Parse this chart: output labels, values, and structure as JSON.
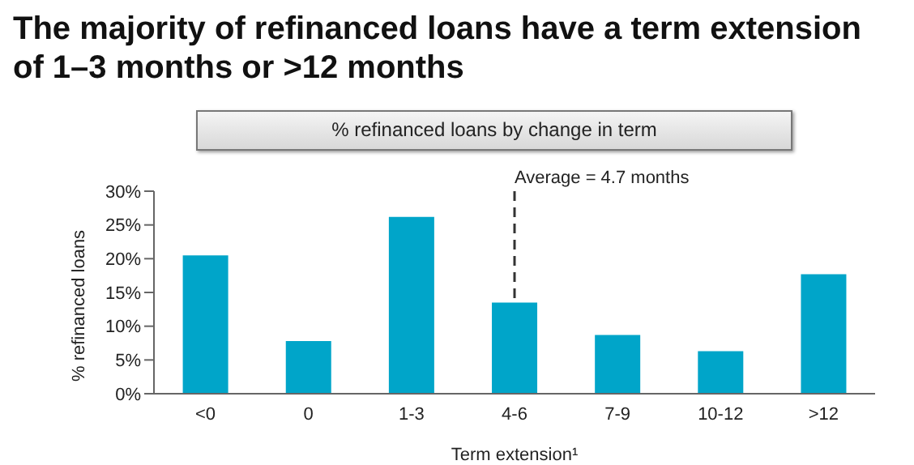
{
  "chart_data": {
    "type": "bar",
    "title": "The majority of refinanced loans have a term extension of 1–3 months or >12 months",
    "subtitle": "% refinanced loans by change in term",
    "xlabel": "Term extension¹",
    "ylabel": "% refinanced loans",
    "categories": [
      "<0",
      "0",
      "1-3",
      "4-6",
      "7-9",
      "10-12",
      ">12"
    ],
    "values": [
      20.5,
      7.8,
      26.2,
      13.5,
      8.7,
      6.3,
      17.7
    ],
    "color": "#00a5c9",
    "ylim": [
      0,
      30
    ],
    "yticks": [
      {
        "value": 0,
        "label": "0%"
      },
      {
        "value": 5,
        "label": "5%"
      },
      {
        "value": 10,
        "label": "10%"
      },
      {
        "value": 15,
        "label": "15%"
      },
      {
        "value": 20,
        "label": "20%"
      },
      {
        "value": 25,
        "label": "25%"
      },
      {
        "value": 30,
        "label": "30%"
      }
    ],
    "ref_lines": [
      {
        "axis": "x",
        "value": "4-6",
        "label": "Average = 4.7 months",
        "line_style": "dashed",
        "color": "#333333"
      }
    ],
    "grid": false,
    "legend": false
  }
}
